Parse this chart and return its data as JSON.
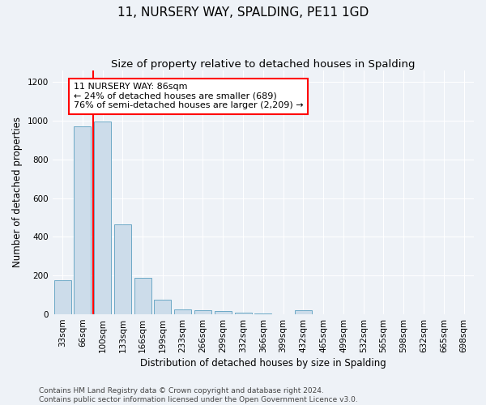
{
  "title": "11, NURSERY WAY, SPALDING, PE11 1GD",
  "subtitle": "Size of property relative to detached houses in Spalding",
  "xlabel": "Distribution of detached houses by size in Spalding",
  "ylabel": "Number of detached properties",
  "categories": [
    "33sqm",
    "66sqm",
    "100sqm",
    "133sqm",
    "166sqm",
    "199sqm",
    "233sqm",
    "266sqm",
    "299sqm",
    "332sqm",
    "366sqm",
    "399sqm",
    "432sqm",
    "465sqm",
    "499sqm",
    "532sqm",
    "565sqm",
    "598sqm",
    "632sqm",
    "665sqm",
    "698sqm"
  ],
  "values": [
    175,
    970,
    995,
    465,
    190,
    75,
    25,
    20,
    15,
    10,
    5,
    0,
    20,
    0,
    0,
    0,
    0,
    0,
    0,
    0,
    0
  ],
  "bar_color": "#ccdcea",
  "bar_edge_color": "#5a9fc0",
  "annotation_text": "11 NURSERY WAY: 86sqm\n← 24% of detached houses are smaller (689)\n76% of semi-detached houses are larger (2,209) →",
  "annotation_box_color": "white",
  "annotation_box_edge_color": "red",
  "red_line_color": "red",
  "red_line_x": 1.52,
  "ylim": [
    0,
    1260
  ],
  "yticks": [
    0,
    200,
    400,
    600,
    800,
    1000,
    1200
  ],
  "footer_line1": "Contains HM Land Registry data © Crown copyright and database right 2024.",
  "footer_line2": "Contains public sector information licensed under the Open Government Licence v3.0.",
  "bg_color": "#eef2f7",
  "grid_color": "white",
  "title_fontsize": 11,
  "subtitle_fontsize": 9.5,
  "label_fontsize": 8.5,
  "tick_fontsize": 7.5,
  "annotation_fontsize": 8,
  "footer_fontsize": 6.5
}
